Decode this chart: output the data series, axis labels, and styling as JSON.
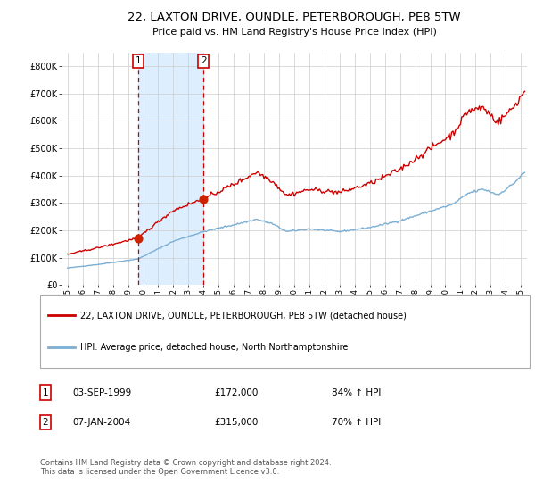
{
  "title_line1": "22, LAXTON DRIVE, OUNDLE, PETERBOROUGH, PE8 5TW",
  "title_line2": "Price paid vs. HM Land Registry's House Price Index (HPI)",
  "legend_line1": "22, LAXTON DRIVE, OUNDLE, PETERBOROUGH, PE8 5TW (detached house)",
  "legend_line2": "HPI: Average price, detached house, North Northamptonshire",
  "sale1_date": "03-SEP-1999",
  "sale1_price": 172000,
  "sale1_hpi_pct": "84% ↑ HPI",
  "sale2_date": "07-JAN-2004",
  "sale2_price": 315000,
  "sale2_hpi_pct": "70% ↑ HPI",
  "footer": "Contains HM Land Registry data © Crown copyright and database right 2024.\nThis data is licensed under the Open Government Licence v3.0.",
  "hpi_color": "#7bafd4",
  "price_color": "#cc0000",
  "sale_dot_color": "#cc2200",
  "vline_color": "#cc0000",
  "shade_color": "#ddeeff",
  "grid_color": "#cccccc",
  "bg_color": "#ffffff",
  "ylim": [
    0,
    850000
  ],
  "yticks": [
    0,
    100000,
    200000,
    300000,
    400000,
    500000,
    600000,
    700000,
    800000
  ],
  "ytick_labels": [
    "£0",
    "£100K",
    "£200K",
    "£300K",
    "£400K",
    "£500K",
    "£600K",
    "£700K",
    "£800K"
  ],
  "sale1_t": 1999.667,
  "sale2_t": 2004.0,
  "xlim_left": 1994.6,
  "xlim_right": 2025.4
}
